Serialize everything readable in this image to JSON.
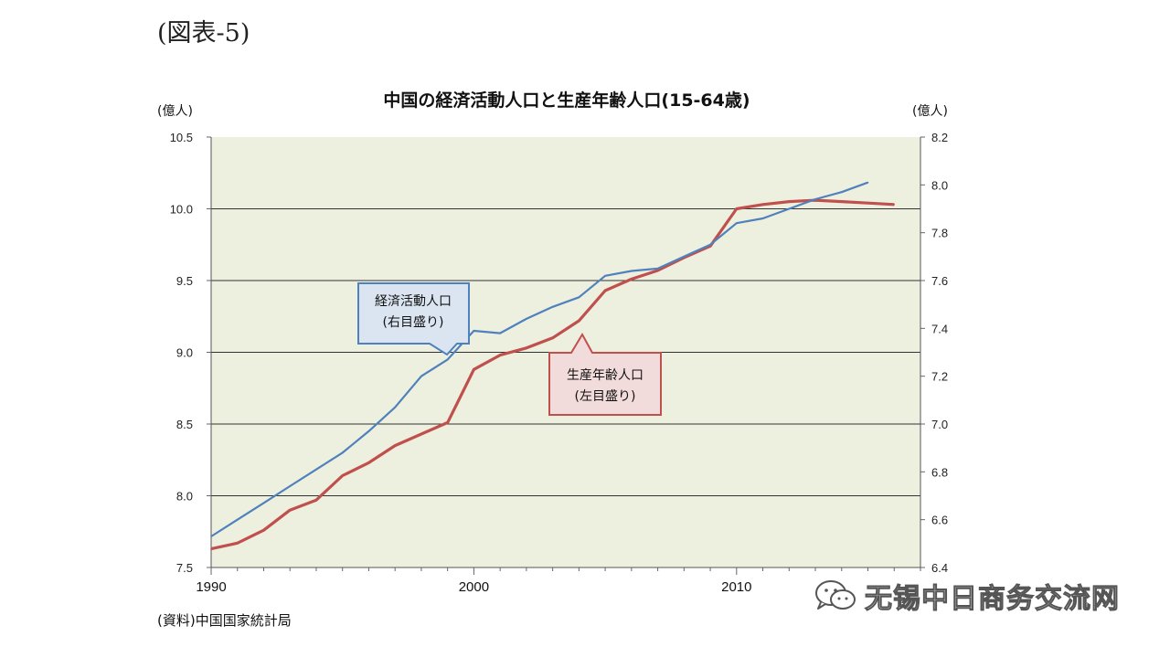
{
  "figure_label": "(図表-5)",
  "source_note": "(資料)中国国家統計局",
  "watermark": "无锡中日商务交流网",
  "chart_data": {
    "type": "line",
    "title": "中国の経済活動人口と生産年齢人口(15-64歳)",
    "left_unit": "(億人)",
    "right_unit": "(億人)",
    "xlim": [
      1990,
      2017
    ],
    "x_ticks": [
      "1990",
      "2000",
      "2010"
    ],
    "left_axis": {
      "ylim": [
        7.5,
        10.5
      ],
      "ticks": [
        "7.5",
        "8.0",
        "8.5",
        "9.0",
        "9.5",
        "10.0",
        "10.5"
      ]
    },
    "right_axis": {
      "ylim": [
        6.4,
        8.2
      ],
      "ticks": [
        "6.4",
        "6.6",
        "6.8",
        "7.0",
        "7.2",
        "7.4",
        "7.6",
        "7.8",
        "8.0",
        "8.2"
      ]
    },
    "grid": "horizontal",
    "background": "#eef0df",
    "series": [
      {
        "name": "生産年齢人口",
        "label_line2": "(左目盛り)",
        "axis": "left",
        "color": "#c0504d",
        "x": [
          1990,
          1991,
          1992,
          1993,
          1994,
          1995,
          1996,
          1997,
          1998,
          1999,
          2000,
          2001,
          2002,
          2003,
          2004,
          2005,
          2006,
          2007,
          2008,
          2009,
          2010,
          2011,
          2012,
          2013,
          2014,
          2015,
          2016
        ],
        "values": [
          7.63,
          7.67,
          7.76,
          7.9,
          7.97,
          8.14,
          8.23,
          8.35,
          8.43,
          8.51,
          8.88,
          8.98,
          9.03,
          9.1,
          9.22,
          9.43,
          9.51,
          9.57,
          9.66,
          9.74,
          10.0,
          10.03,
          10.05,
          10.06,
          10.05,
          10.04,
          10.03
        ]
      },
      {
        "name": "経済活動人口",
        "label_line2": "(右目盛り)",
        "axis": "right",
        "color": "#4f81bd",
        "x": [
          1990,
          1991,
          1992,
          1993,
          1994,
          1995,
          1996,
          1997,
          1998,
          1999,
          2000,
          2001,
          2002,
          2003,
          2004,
          2005,
          2006,
          2007,
          2008,
          2009,
          2010,
          2011,
          2012,
          2013,
          2014,
          2015
        ],
        "values": [
          6.53,
          6.6,
          6.67,
          6.74,
          6.81,
          6.88,
          6.97,
          7.07,
          7.2,
          7.27,
          7.39,
          7.38,
          7.44,
          7.49,
          7.53,
          7.62,
          7.64,
          7.65,
          7.7,
          7.75,
          7.84,
          7.86,
          7.9,
          7.94,
          7.97,
          8.01
        ]
      }
    ]
  }
}
